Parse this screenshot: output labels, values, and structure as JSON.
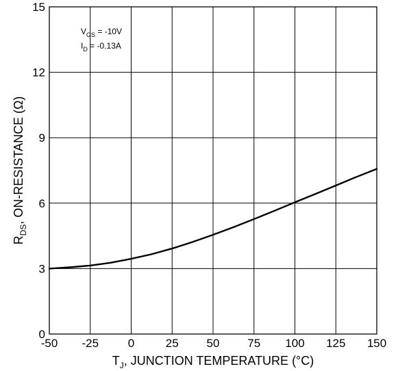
{
  "chart_data": {
    "type": "line",
    "title": "",
    "xlabel": {
      "main": "T",
      "sub": "J",
      "rest": ", JUNCTION TEMPERATURE (°C)"
    },
    "ylabel": {
      "main": "R",
      "sub": "DS",
      "rest": ", ON-RESISTANCE (Ω)"
    },
    "xlim": [
      -50,
      150
    ],
    "ylim": [
      0,
      15
    ],
    "xticks": [
      -50,
      -25,
      0,
      25,
      50,
      75,
      100,
      125,
      150
    ],
    "yticks": [
      0,
      3,
      6,
      9,
      12,
      15
    ],
    "xtick_labels": [
      "-50",
      "-25",
      "0",
      "25",
      "50",
      "75",
      "100",
      "125",
      "150"
    ],
    "ytick_labels": [
      "0",
      "3",
      "6",
      "9",
      "12",
      "15"
    ],
    "grid": true,
    "annotations": [
      {
        "main": "V",
        "sub": "GS",
        "rest": " = -10V"
      },
      {
        "main": "I",
        "sub": "D",
        "rest": " = -0.13A"
      }
    ],
    "series": [
      {
        "x": [
          -50,
          -37.5,
          -25,
          -12.5,
          0,
          12.5,
          25,
          37.5,
          50,
          62.5,
          75,
          87.5,
          100,
          112.5,
          125,
          137.5,
          150
        ],
        "y": [
          3.0,
          3.06,
          3.14,
          3.27,
          3.45,
          3.66,
          3.92,
          4.22,
          4.55,
          4.9,
          5.27,
          5.65,
          6.04,
          6.42,
          6.81,
          7.2,
          7.57
        ]
      }
    ],
    "line_color": "#000000"
  }
}
